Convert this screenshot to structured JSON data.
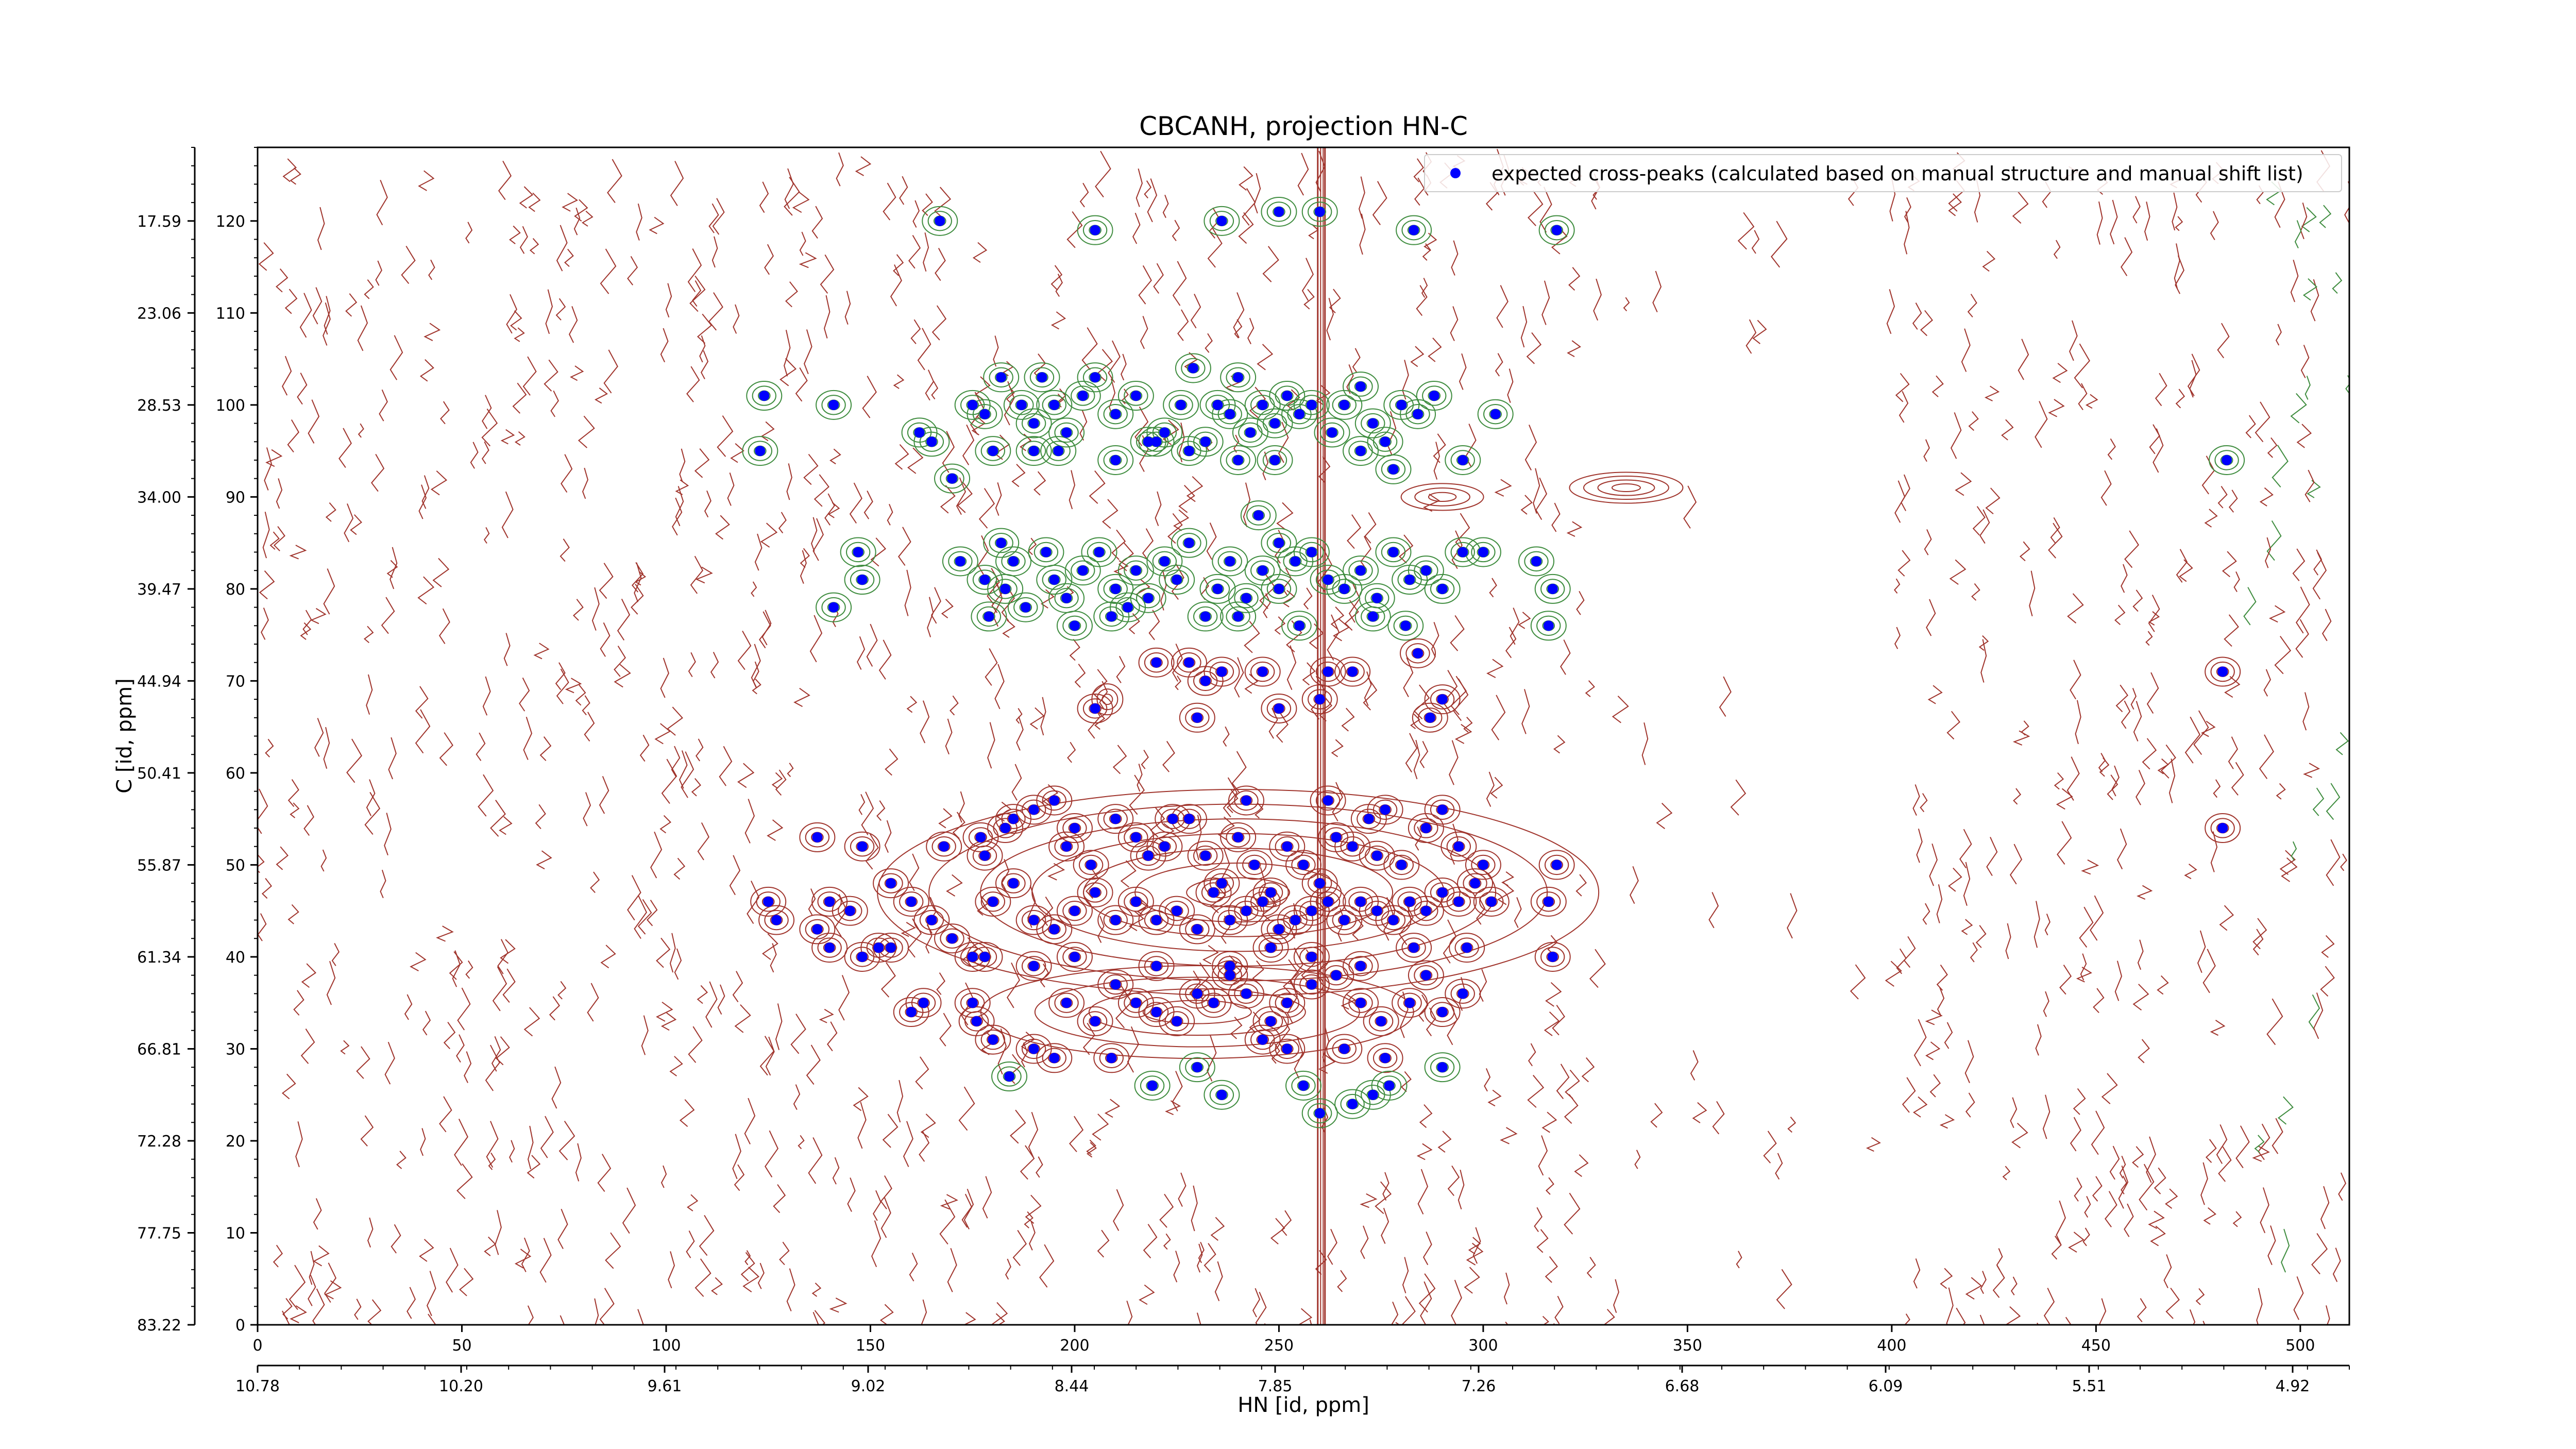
{
  "chart_data": {
    "type": "scatter",
    "title": "CBCANH, projection HN-C",
    "xlabel": "",
    "ylabel": "C [id, ppm]",
    "x2label": "HN [id, ppm]",
    "xlim": [
      0,
      512
    ],
    "ylim": [
      0,
      128
    ],
    "x_ticks": [
      0,
      50,
      100,
      150,
      200,
      250,
      300,
      350,
      400,
      450,
      500
    ],
    "y_ticks": [
      0,
      10,
      20,
      30,
      40,
      50,
      60,
      70,
      80,
      90,
      100,
      110,
      120
    ],
    "x2_tick_labels": [
      "10.78",
      "10.20",
      "9.61",
      "9.02",
      "8.44",
      "7.85",
      "7.26",
      "6.68",
      "6.09",
      "5.51",
      "4.92"
    ],
    "y2_tick_labels": [
      "83.22",
      "77.75",
      "72.28",
      "66.81",
      "61.34",
      "55.87",
      "50.41",
      "44.94",
      "39.47",
      "34.00",
      "28.53",
      "23.06",
      "17.59"
    ],
    "legend": {
      "position": "top-right",
      "label": "expected cross-peaks (calculated based on manual structure and manual shift list)"
    },
    "colors": {
      "peaks": "#0000ff",
      "positive_contour": "#a0342c",
      "negative_contour": "#3e8c3e"
    },
    "series": [
      {
        "name": "expected cross-peaks (calculated based on manual structure and manual shift list)",
        "points": [
          [
            167,
            120
          ],
          [
            205,
            119
          ],
          [
            236,
            120
          ],
          [
            250,
            121
          ],
          [
            260,
            121
          ],
          [
            283,
            119
          ],
          [
            318,
            119
          ],
          [
            124,
            101
          ],
          [
            141,
            100
          ],
          [
            162,
            97
          ],
          [
            165,
            96
          ],
          [
            175,
            100
          ],
          [
            178,
            99
          ],
          [
            180,
            95
          ],
          [
            182,
            103
          ],
          [
            187,
            100
          ],
          [
            190,
            98
          ],
          [
            192,
            103
          ],
          [
            195,
            100
          ],
          [
            198,
            97
          ],
          [
            202,
            101
          ],
          [
            205,
            103
          ],
          [
            210,
            99
          ],
          [
            215,
            101
          ],
          [
            218,
            96
          ],
          [
            222,
            97
          ],
          [
            226,
            100
          ],
          [
            229,
            104
          ],
          [
            232,
            96
          ],
          [
            235,
            100
          ],
          [
            238,
            99
          ],
          [
            240,
            103
          ],
          [
            243,
            97
          ],
          [
            246,
            100
          ],
          [
            249,
            98
          ],
          [
            252,
            101
          ],
          [
            255,
            99
          ],
          [
            258,
            100
          ],
          [
            263,
            97
          ],
          [
            266,
            100
          ],
          [
            270,
            102
          ],
          [
            273,
            98
          ],
          [
            276,
            96
          ],
          [
            280,
            100
          ],
          [
            284,
            99
          ],
          [
            288,
            101
          ],
          [
            270,
            95
          ],
          [
            278,
            93
          ],
          [
            249,
            94
          ],
          [
            240,
            94
          ],
          [
            228,
            95
          ],
          [
            220,
            96
          ],
          [
            210,
            94
          ],
          [
            196,
            95
          ],
          [
            190,
            95
          ],
          [
            170,
            92
          ],
          [
            295,
            94
          ],
          [
            303,
            99
          ],
          [
            123,
            95
          ],
          [
            147,
            84
          ],
          [
            148,
            81
          ],
          [
            141,
            78
          ],
          [
            172,
            83
          ],
          [
            178,
            81
          ],
          [
            182,
            85
          ],
          [
            185,
            83
          ],
          [
            188,
            78
          ],
          [
            193,
            84
          ],
          [
            195,
            81
          ],
          [
            198,
            79
          ],
          [
            202,
            82
          ],
          [
            206,
            84
          ],
          [
            210,
            80
          ],
          [
            215,
            82
          ],
          [
            218,
            79
          ],
          [
            222,
            83
          ],
          [
            225,
            81
          ],
          [
            228,
            85
          ],
          [
            232,
            77
          ],
          [
            235,
            80
          ],
          [
            238,
            83
          ],
          [
            242,
            79
          ],
          [
            246,
            82
          ],
          [
            250,
            80
          ],
          [
            254,
            83
          ],
          [
            258,
            84
          ],
          [
            262,
            81
          ],
          [
            266,
            80
          ],
          [
            270,
            82
          ],
          [
            274,
            79
          ],
          [
            278,
            84
          ],
          [
            282,
            81
          ],
          [
            286,
            82
          ],
          [
            290,
            80
          ],
          [
            295,
            84
          ],
          [
            300,
            84
          ],
          [
            313,
            83
          ],
          [
            317,
            80
          ],
          [
            179,
            77
          ],
          [
            183,
            80
          ],
          [
            200,
            76
          ],
          [
            209,
            77
          ],
          [
            213,
            78
          ],
          [
            240,
            77
          ],
          [
            255,
            76
          ],
          [
            273,
            77
          ],
          [
            281,
            76
          ],
          [
            316,
            76
          ],
          [
            245,
            88
          ],
          [
            250,
            85
          ],
          [
            220,
            72
          ],
          [
            228,
            72
          ],
          [
            232,
            70
          ],
          [
            236,
            71
          ],
          [
            246,
            71
          ],
          [
            260,
            68
          ],
          [
            262,
            71
          ],
          [
            268,
            71
          ],
          [
            284,
            73
          ],
          [
            290,
            68
          ],
          [
            205,
            67
          ],
          [
            287,
            66
          ],
          [
            230,
            66
          ],
          [
            250,
            67
          ],
          [
            137,
            53
          ],
          [
            148,
            52
          ],
          [
            155,
            48
          ],
          [
            168,
            52
          ],
          [
            178,
            51
          ],
          [
            183,
            54
          ],
          [
            190,
            56
          ],
          [
            195,
            57
          ],
          [
            198,
            52
          ],
          [
            204,
            50
          ],
          [
            210,
            55
          ],
          [
            215,
            53
          ],
          [
            218,
            51
          ],
          [
            222,
            52
          ],
          [
            228,
            55
          ],
          [
            232,
            51
          ],
          [
            236,
            48
          ],
          [
            240,
            53
          ],
          [
            244,
            50
          ],
          [
            248,
            47
          ],
          [
            252,
            52
          ],
          [
            256,
            50
          ],
          [
            260,
            48
          ],
          [
            262,
            57
          ],
          [
            264,
            53
          ],
          [
            268,
            52
          ],
          [
            272,
            55
          ],
          [
            276,
            56
          ],
          [
            280,
            50
          ],
          [
            286,
            54
          ],
          [
            290,
            56
          ],
          [
            294,
            52
          ],
          [
            300,
            50
          ],
          [
            318,
            50
          ],
          [
            177,
            53
          ],
          [
            185,
            55
          ],
          [
            242,
            57
          ],
          [
            200,
            54
          ],
          [
            224,
            55
          ],
          [
            274,
            51
          ],
          [
            125,
            46
          ],
          [
            127,
            44
          ],
          [
            137,
            43
          ],
          [
            140,
            41
          ],
          [
            145,
            45
          ],
          [
            152,
            41
          ],
          [
            160,
            46
          ],
          [
            165,
            44
          ],
          [
            170,
            42
          ],
          [
            175,
            40
          ],
          [
            180,
            46
          ],
          [
            185,
            48
          ],
          [
            190,
            44
          ],
          [
            195,
            43
          ],
          [
            200,
            45
          ],
          [
            205,
            47
          ],
          [
            210,
            44
          ],
          [
            215,
            46
          ],
          [
            220,
            44
          ],
          [
            225,
            45
          ],
          [
            230,
            43
          ],
          [
            234,
            47
          ],
          [
            238,
            44
          ],
          [
            242,
            45
          ],
          [
            246,
            46
          ],
          [
            250,
            43
          ],
          [
            254,
            44
          ],
          [
            258,
            45
          ],
          [
            262,
            46
          ],
          [
            266,
            44
          ],
          [
            270,
            46
          ],
          [
            274,
            45
          ],
          [
            278,
            44
          ],
          [
            282,
            46
          ],
          [
            286,
            45
          ],
          [
            290,
            47
          ],
          [
            294,
            46
          ],
          [
            298,
            48
          ],
          [
            302,
            46
          ],
          [
            316,
            46
          ],
          [
            140,
            46
          ],
          [
            148,
            40
          ],
          [
            155,
            41
          ],
          [
            178,
            40
          ],
          [
            190,
            39
          ],
          [
            200,
            40
          ],
          [
            220,
            39
          ],
          [
            238,
            39
          ],
          [
            248,
            41
          ],
          [
            258,
            40
          ],
          [
            270,
            39
          ],
          [
            283,
            41
          ],
          [
            296,
            41
          ],
          [
            317,
            40
          ],
          [
            160,
            34
          ],
          [
            163,
            35
          ],
          [
            175,
            35
          ],
          [
            180,
            31
          ],
          [
            190,
            30
          ],
          [
            195,
            29
          ],
          [
            198,
            35
          ],
          [
            205,
            33
          ],
          [
            210,
            37
          ],
          [
            215,
            35
          ],
          [
            220,
            34
          ],
          [
            225,
            33
          ],
          [
            230,
            36
          ],
          [
            234,
            35
          ],
          [
            238,
            38
          ],
          [
            242,
            36
          ],
          [
            248,
            33
          ],
          [
            252,
            35
          ],
          [
            258,
            37
          ],
          [
            264,
            38
          ],
          [
            270,
            35
          ],
          [
            275,
            33
          ],
          [
            282,
            35
          ],
          [
            286,
            38
          ],
          [
            290,
            34
          ],
          [
            295,
            36
          ],
          [
            176,
            33
          ],
          [
            209,
            29
          ],
          [
            246,
            31
          ],
          [
            252,
            30
          ],
          [
            266,
            30
          ],
          [
            276,
            29
          ],
          [
            184,
            27
          ],
          [
            219,
            26
          ],
          [
            236,
            25
          ],
          [
            256,
            26
          ],
          [
            260,
            23
          ],
          [
            268,
            24
          ],
          [
            273,
            25
          ],
          [
            277,
            26
          ],
          [
            290,
            28
          ],
          [
            230,
            28
          ],
          [
            482,
            94
          ],
          [
            481,
            71
          ],
          [
            481,
            54
          ]
        ]
      }
    ]
  }
}
